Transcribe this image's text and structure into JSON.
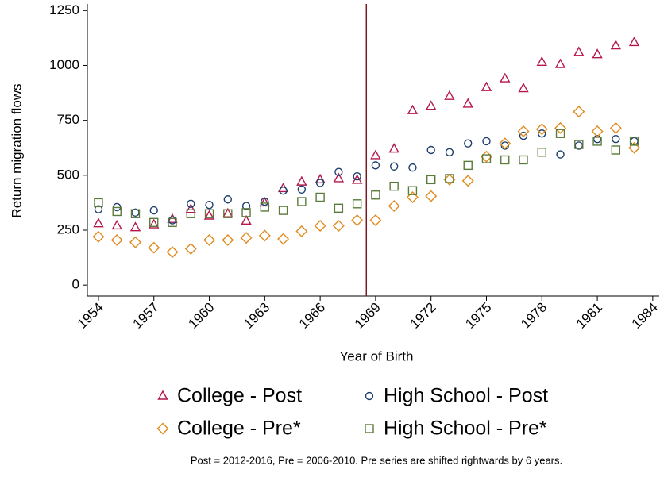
{
  "chart_data": {
    "type": "scatter",
    "xlabel": "Year of Birth",
    "ylabel": "Return migration flows",
    "note": "Post = 2012-2016, Pre = 2006-2010. Pre series are shifted rightwards by 6 years.",
    "x": [
      1954,
      1955,
      1956,
      1957,
      1958,
      1959,
      1960,
      1961,
      1962,
      1963,
      1964,
      1965,
      1966,
      1967,
      1968,
      1969,
      1970,
      1971,
      1972,
      1973,
      1974,
      1975,
      1976,
      1977,
      1978,
      1979,
      1980,
      1981,
      1982,
      1983
    ],
    "series": [
      {
        "name": "College - Post",
        "color": "#b5174b",
        "marker": "triangle",
        "values": [
          280,
          270,
          262,
          275,
          300,
          345,
          315,
          325,
          292,
          375,
          440,
          470,
          480,
          485,
          478,
          590,
          620,
          795,
          815,
          860,
          825,
          900,
          940,
          895,
          1015,
          1005,
          1060,
          1050,
          1090,
          1105
        ]
      },
      {
        "name": "High School - Post",
        "color": "#1c3f6e",
        "marker": "circle",
        "values": [
          345,
          355,
          330,
          340,
          295,
          370,
          365,
          390,
          360,
          380,
          430,
          435,
          465,
          515,
          495,
          545,
          540,
          535,
          615,
          605,
          645,
          655,
          635,
          680,
          690,
          595,
          635,
          665,
          665,
          655
        ]
      },
      {
        "name": "College - Pre*",
        "color": "#e08a1e",
        "marker": "diamond",
        "values": [
          220,
          205,
          195,
          170,
          150,
          165,
          205,
          205,
          215,
          225,
          210,
          245,
          270,
          270,
          295,
          295,
          360,
          400,
          405,
          480,
          475,
          585,
          645,
          700,
          710,
          715,
          790,
          700,
          715,
          625
        ]
      },
      {
        "name": "High School - Pre*",
        "color": "#5b7b3a",
        "marker": "square",
        "values": [
          375,
          335,
          325,
          285,
          285,
          325,
          325,
          325,
          330,
          355,
          340,
          380,
          400,
          350,
          370,
          410,
          450,
          430,
          480,
          485,
          545,
          575,
          570,
          570,
          605,
          690,
          640,
          655,
          615,
          655
        ]
      }
    ],
    "reference_x": 1968.5,
    "xlim": [
      1953.4,
      1984.35
    ],
    "xticks": [
      1954,
      1957,
      1960,
      1963,
      1966,
      1969,
      1972,
      1975,
      1978,
      1981,
      1984
    ],
    "ylim": [
      -50,
      1280
    ],
    "yticks": [
      0,
      250,
      500,
      750,
      1000,
      1250
    ]
  }
}
